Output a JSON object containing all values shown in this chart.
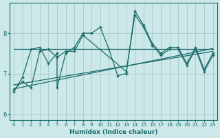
{
  "xlabel": "Humidex (Indice chaleur)",
  "bg_color": "#cce8e8",
  "line_color": "#1a6b6b",
  "grid_color": "#aacece",
  "xlim": [
    -0.5,
    23.5
  ],
  "ylim": [
    5.85,
    8.75
  ],
  "xticks": [
    0,
    1,
    2,
    3,
    4,
    5,
    6,
    7,
    8,
    9,
    10,
    11,
    12,
    13,
    14,
    15,
    16,
    17,
    18,
    19,
    20,
    21,
    22,
    23
  ],
  "yticks": [
    6,
    7,
    8
  ],
  "series1_x": [
    0,
    1,
    2,
    3,
    4,
    5,
    5,
    6,
    7,
    8,
    9,
    10,
    11,
    12,
    13,
    14,
    15,
    16,
    17,
    18,
    19,
    20,
    21,
    22,
    23
  ],
  "series1_y": [
    6.55,
    6.9,
    7.6,
    7.65,
    7.25,
    7.5,
    6.65,
    7.5,
    7.65,
    8.0,
    8.0,
    8.15,
    7.6,
    6.95,
    7.0,
    8.55,
    8.2,
    7.75,
    7.5,
    7.65,
    7.65,
    7.25,
    7.65,
    7.1,
    7.5
  ],
  "series2_x": [
    0,
    1,
    2,
    3,
    4,
    5,
    6,
    7,
    8,
    13,
    14,
    15,
    16,
    17,
    18,
    19,
    20,
    21,
    22,
    23
  ],
  "series2_y": [
    6.6,
    6.8,
    6.65,
    7.55,
    7.6,
    7.4,
    7.55,
    7.55,
    7.95,
    7.05,
    8.45,
    8.15,
    7.7,
    7.45,
    7.6,
    7.6,
    7.2,
    7.6,
    7.05,
    7.45
  ],
  "trend1_x": [
    0,
    23
  ],
  "trend1_y": [
    6.62,
    7.62
  ],
  "trend2_x": [
    0,
    23
  ],
  "trend2_y": [
    6.72,
    7.55
  ],
  "trend3_x": [
    0,
    23
  ],
  "trend3_y": [
    7.6,
    7.6
  ]
}
